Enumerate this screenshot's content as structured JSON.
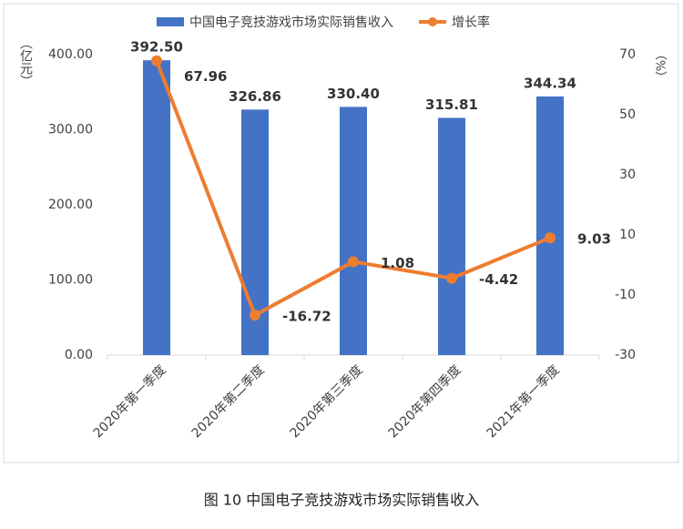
{
  "chart_data": {
    "type": "bar-line",
    "title": "图 10  中国电子竞技游戏市场实际销售收入",
    "ylabel": "（亿元）",
    "y2label": "（%）",
    "categories": [
      "2020年第一季度",
      "2020年第二季度",
      "2020年第三季度",
      "2020年第四季度",
      "2021年第一季度"
    ],
    "series": [
      {
        "name": "中国电子竞技游戏市场实际销售收入",
        "type": "bar",
        "color": "#4472c4",
        "values": [
          392.5,
          326.86,
          330.4,
          315.81,
          344.34
        ],
        "value_labels": [
          "392.50",
          "326.86",
          "330.40",
          "315.81",
          "344.34"
        ]
      },
      {
        "name": "增长率",
        "type": "line",
        "axis": "y2",
        "color": "#ed7d31",
        "values": [
          67.96,
          -16.72,
          1.08,
          -4.42,
          9.03
        ]
      }
    ],
    "ylim": [
      0,
      400
    ],
    "yticks": [
      {
        "value": 0,
        "label": "0.00"
      },
      {
        "value": 100,
        "label": "100.00"
      },
      {
        "value": 200,
        "label": "200.00"
      },
      {
        "value": 300,
        "label": "300.00"
      },
      {
        "value": 400,
        "label": "400.00"
      }
    ],
    "y2lim": [
      -30,
      70
    ],
    "y2ticks": [
      -30,
      -10,
      10,
      30,
      50,
      70
    ],
    "legend": "top"
  }
}
